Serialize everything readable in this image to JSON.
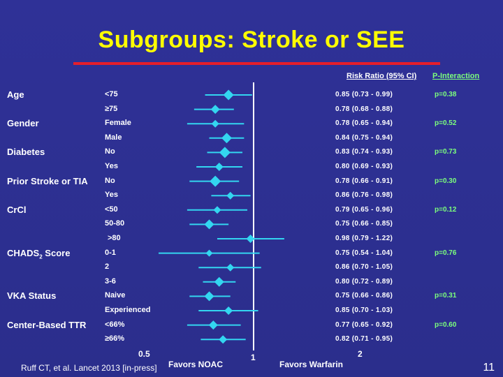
{
  "slide": {
    "title": "Subgroups: Stroke or SEE",
    "citation": "Ruff CT, et al. Lancet 2013 [in-press]",
    "page_number": "11",
    "accent_title_color": "#ffff00",
    "rule_color": "#e61e2b",
    "background": "#2e3192"
  },
  "chart_data": {
    "type": "forest",
    "header_rr": "Risk Ratio (95% CI)",
    "header_p": "P-Interaction",
    "x_axis": {
      "scale": "log",
      "ticks": [
        "0.5",
        "1",
        "2"
      ],
      "reference": 1
    },
    "favor_left": "Favors NOAC",
    "favor_right": "Favors Warfarin",
    "marker_color": "#33d6f0",
    "groups": [
      {
        "name": "Age",
        "p": "p=0.38",
        "rows": [
          {
            "label": "<75",
            "rr": 0.85,
            "lo": 0.73,
            "hi": 0.99,
            "ci_text": "0.85 (0.73 - 0.99)",
            "weight": 0.9
          },
          {
            "label": "≥75",
            "rr": 0.78,
            "lo": 0.68,
            "hi": 0.88,
            "ci_text": "0.78 (0.68 - 0.88)",
            "weight": 0.7
          }
        ]
      },
      {
        "name": "Gender",
        "p": "p=0.52",
        "rows": [
          {
            "label": "Female",
            "rr": 0.78,
            "lo": 0.65,
            "hi": 0.94,
            "ci_text": "0.78 (0.65 - 0.94)",
            "weight": 0.5
          },
          {
            "label": "Male",
            "rr": 0.84,
            "lo": 0.75,
            "hi": 0.94,
            "ci_text": "0.84 (0.75 - 0.94)",
            "weight": 0.9
          }
        ]
      },
      {
        "name": "Diabetes",
        "p": "p=0.73",
        "rows": [
          {
            "label": "No",
            "rr": 0.83,
            "lo": 0.74,
            "hi": 0.93,
            "ci_text": "0.83 (0.74 - 0.93)",
            "weight": 1.0
          },
          {
            "label": "Yes",
            "rr": 0.8,
            "lo": 0.69,
            "hi": 0.93,
            "ci_text": "0.80 (0.69 - 0.93)",
            "weight": 0.6
          }
        ]
      },
      {
        "name": "Prior Stroke or TIA",
        "p": "p=0.30",
        "rows": [
          {
            "label": "No",
            "rr": 0.78,
            "lo": 0.66,
            "hi": 0.91,
            "ci_text": "0.78 (0.66 - 0.91)",
            "weight": 1.0
          },
          {
            "label": "Yes",
            "rr": 0.86,
            "lo": 0.76,
            "hi": 0.98,
            "ci_text": "0.86 (0.76 - 0.98)",
            "weight": 0.5
          }
        ]
      },
      {
        "name": "CrCl",
        "p": "p=0.12",
        "rows": [
          {
            "label": "<50",
            "rr": 0.79,
            "lo": 0.65,
            "hi": 0.96,
            "ci_text": "0.79 (0.65 - 0.96)",
            "weight": 0.5
          },
          {
            "label": "50-80",
            "rr": 0.75,
            "lo": 0.66,
            "hi": 0.85,
            "ci_text": "0.75 (0.66 - 0.85)",
            "weight": 0.8
          },
          {
            "label": ">80",
            "rr": 0.98,
            "lo": 0.79,
            "hi": 1.22,
            "ci_text": "0.98 (0.79 - 1.22)",
            "weight": 0.6
          }
        ]
      },
      {
        "name": "CHADS",
        "name_sub": "2",
        "name_suffix": " Score",
        "p": "p=0.76",
        "rows": [
          {
            "label": "0-1",
            "rr": 0.75,
            "lo": 0.54,
            "hi": 1.04,
            "ci_text": "0.75 (0.54 - 1.04)",
            "weight": 0.4
          },
          {
            "label": "2",
            "rr": 0.86,
            "lo": 0.7,
            "hi": 1.05,
            "ci_text": "0.86 (0.70 - 1.05)",
            "weight": 0.5
          },
          {
            "label": "3-6",
            "rr": 0.8,
            "lo": 0.72,
            "hi": 0.89,
            "ci_text": "0.80 (0.72 - 0.89)",
            "weight": 0.8
          }
        ]
      },
      {
        "name": "VKA Status",
        "p": "p=0.31",
        "rows": [
          {
            "label": "Naive",
            "rr": 0.75,
            "lo": 0.66,
            "hi": 0.86,
            "ci_text": "0.75 (0.66 - 0.86)",
            "weight": 0.8
          },
          {
            "label": "Experienced",
            "rr": 0.85,
            "lo": 0.7,
            "hi": 1.03,
            "ci_text": "0.85 (0.70 - 1.03)",
            "weight": 0.6
          }
        ]
      },
      {
        "name": "Center-Based TTR",
        "p": "p=0.60",
        "rows": [
          {
            "label": "<66%",
            "rr": 0.77,
            "lo": 0.65,
            "hi": 0.92,
            "ci_text": "0.77 (0.65 - 0.92)",
            "weight": 0.7
          },
          {
            "label": "≥66%",
            "rr": 0.82,
            "lo": 0.71,
            "hi": 0.95,
            "ci_text": "0.82 (0.71 - 0.95)",
            "weight": 0.6
          }
        ]
      }
    ]
  }
}
